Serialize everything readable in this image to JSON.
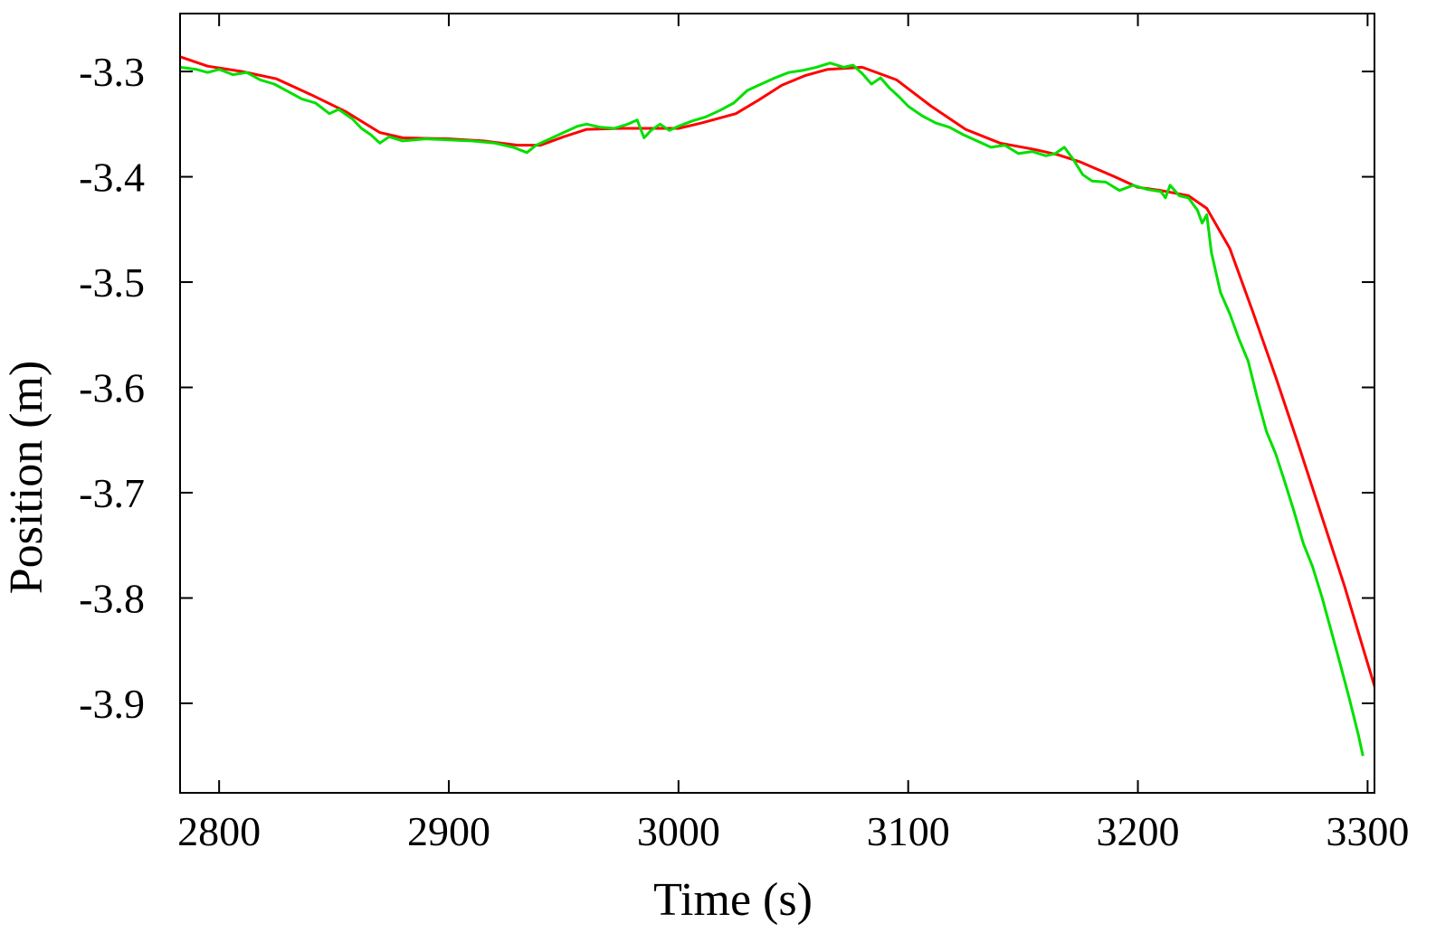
{
  "chart_data": {
    "type": "line",
    "title": "",
    "xlabel": "Time (s)",
    "ylabel": "Position (m)",
    "xlim": [
      2783,
      3303
    ],
    "ylim": [
      -3.985,
      -3.245
    ],
    "xticks": [
      2800,
      2900,
      3000,
      3100,
      3200,
      3300
    ],
    "yticks": [
      -3.3,
      -3.4,
      -3.5,
      -3.6,
      -3.7,
      -3.8,
      -3.9
    ],
    "xtick_labels": [
      "2800",
      "2900",
      "3000",
      "3100",
      "3200",
      "3300"
    ],
    "ytick_labels": [
      "-3.3",
      "-3.4",
      "-3.5",
      "-3.6",
      "-3.7",
      "-3.8",
      "-3.9"
    ],
    "grid": false,
    "legend": "none",
    "series": [
      {
        "color": "#ff0000",
        "points": [
          [
            2783,
            -3.286
          ],
          [
            2795,
            -3.295
          ],
          [
            2810,
            -3.3
          ],
          [
            2825,
            -3.307
          ],
          [
            2840,
            -3.322
          ],
          [
            2855,
            -3.338
          ],
          [
            2870,
            -3.358
          ],
          [
            2880,
            -3.363
          ],
          [
            2900,
            -3.364
          ],
          [
            2915,
            -3.366
          ],
          [
            2930,
            -3.37
          ],
          [
            2940,
            -3.37
          ],
          [
            2950,
            -3.362
          ],
          [
            2960,
            -3.355
          ],
          [
            2975,
            -3.354
          ],
          [
            2990,
            -3.354
          ],
          [
            3000,
            -3.354
          ],
          [
            3010,
            -3.349
          ],
          [
            3025,
            -3.34
          ],
          [
            3035,
            -3.327
          ],
          [
            3045,
            -3.313
          ],
          [
            3055,
            -3.304
          ],
          [
            3065,
            -3.298
          ],
          [
            3080,
            -3.296
          ],
          [
            3095,
            -3.308
          ],
          [
            3110,
            -3.333
          ],
          [
            3125,
            -3.355
          ],
          [
            3140,
            -3.368
          ],
          [
            3155,
            -3.374
          ],
          [
            3165,
            -3.379
          ],
          [
            3175,
            -3.386
          ],
          [
            3190,
            -3.4
          ],
          [
            3200,
            -3.41
          ],
          [
            3210,
            -3.413
          ],
          [
            3222,
            -3.418
          ],
          [
            3230,
            -3.43
          ],
          [
            3240,
            -3.468
          ],
          [
            3250,
            -3.528
          ],
          [
            3260,
            -3.59
          ],
          [
            3270,
            -3.655
          ],
          [
            3280,
            -3.722
          ],
          [
            3290,
            -3.789
          ],
          [
            3300,
            -3.862
          ],
          [
            3306,
            -3.905
          ]
        ]
      },
      {
        "color": "#00e000",
        "points": [
          [
            2783,
            -3.296
          ],
          [
            2790,
            -3.298
          ],
          [
            2795,
            -3.301
          ],
          [
            2800,
            -3.298
          ],
          [
            2806,
            -3.303
          ],
          [
            2812,
            -3.301
          ],
          [
            2818,
            -3.308
          ],
          [
            2824,
            -3.312
          ],
          [
            2830,
            -3.319
          ],
          [
            2836,
            -3.326
          ],
          [
            2842,
            -3.33
          ],
          [
            2848,
            -3.34
          ],
          [
            2852,
            -3.336
          ],
          [
            2858,
            -3.345
          ],
          [
            2862,
            -3.354
          ],
          [
            2866,
            -3.36
          ],
          [
            2870,
            -3.368
          ],
          [
            2874,
            -3.362
          ],
          [
            2880,
            -3.366
          ],
          [
            2890,
            -3.364
          ],
          [
            2900,
            -3.365
          ],
          [
            2910,
            -3.366
          ],
          [
            2920,
            -3.368
          ],
          [
            2928,
            -3.372
          ],
          [
            2934,
            -3.377
          ],
          [
            2938,
            -3.37
          ],
          [
            2944,
            -3.364
          ],
          [
            2950,
            -3.358
          ],
          [
            2956,
            -3.352
          ],
          [
            2960,
            -3.35
          ],
          [
            2966,
            -3.353
          ],
          [
            2972,
            -3.354
          ],
          [
            2978,
            -3.35
          ],
          [
            2982,
            -3.346
          ],
          [
            2985,
            -3.363
          ],
          [
            2988,
            -3.356
          ],
          [
            2992,
            -3.35
          ],
          [
            2996,
            -3.356
          ],
          [
            3000,
            -3.352
          ],
          [
            3006,
            -3.347
          ],
          [
            3012,
            -3.343
          ],
          [
            3018,
            -3.337
          ],
          [
            3024,
            -3.33
          ],
          [
            3030,
            -3.318
          ],
          [
            3036,
            -3.312
          ],
          [
            3042,
            -3.306
          ],
          [
            3048,
            -3.301
          ],
          [
            3054,
            -3.299
          ],
          [
            3060,
            -3.296
          ],
          [
            3066,
            -3.292
          ],
          [
            3072,
            -3.296
          ],
          [
            3076,
            -3.294
          ],
          [
            3080,
            -3.302
          ],
          [
            3084,
            -3.312
          ],
          [
            3088,
            -3.306
          ],
          [
            3092,
            -3.316
          ],
          [
            3096,
            -3.324
          ],
          [
            3100,
            -3.333
          ],
          [
            3106,
            -3.342
          ],
          [
            3112,
            -3.349
          ],
          [
            3118,
            -3.353
          ],
          [
            3124,
            -3.36
          ],
          [
            3130,
            -3.366
          ],
          [
            3136,
            -3.372
          ],
          [
            3142,
            -3.37
          ],
          [
            3148,
            -3.378
          ],
          [
            3154,
            -3.376
          ],
          [
            3160,
            -3.38
          ],
          [
            3164,
            -3.378
          ],
          [
            3168,
            -3.372
          ],
          [
            3172,
            -3.384
          ],
          [
            3176,
            -3.398
          ],
          [
            3180,
            -3.404
          ],
          [
            3186,
            -3.405
          ],
          [
            3192,
            -3.413
          ],
          [
            3198,
            -3.408
          ],
          [
            3204,
            -3.412
          ],
          [
            3210,
            -3.414
          ],
          [
            3212,
            -3.42
          ],
          [
            3214,
            -3.408
          ],
          [
            3218,
            -3.418
          ],
          [
            3222,
            -3.42
          ],
          [
            3226,
            -3.432
          ],
          [
            3228,
            -3.444
          ],
          [
            3230,
            -3.436
          ],
          [
            3232,
            -3.472
          ],
          [
            3236,
            -3.51
          ],
          [
            3240,
            -3.53
          ],
          [
            3244,
            -3.554
          ],
          [
            3248,
            -3.575
          ],
          [
            3252,
            -3.61
          ],
          [
            3256,
            -3.642
          ],
          [
            3260,
            -3.663
          ],
          [
            3264,
            -3.69
          ],
          [
            3268,
            -3.718
          ],
          [
            3272,
            -3.748
          ],
          [
            3276,
            -3.77
          ],
          [
            3280,
            -3.798
          ],
          [
            3284,
            -3.83
          ],
          [
            3288,
            -3.862
          ],
          [
            3292,
            -3.895
          ],
          [
            3296,
            -3.93
          ],
          [
            3298,
            -3.95
          ]
        ]
      }
    ]
  }
}
